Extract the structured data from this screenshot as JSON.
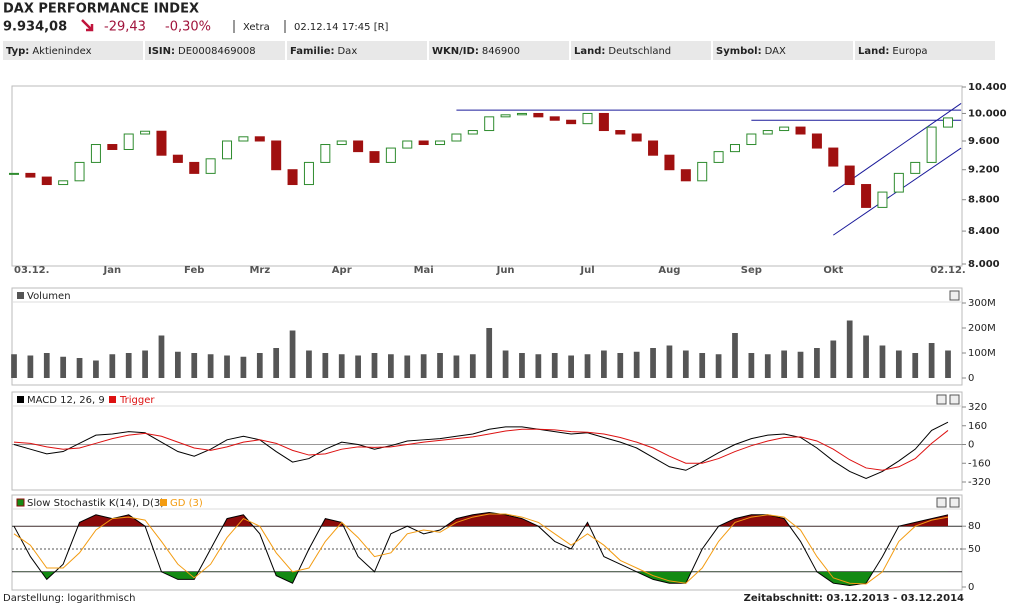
{
  "header": {
    "title": "DAX PERFORMANCE INDEX",
    "price": "9.934,08",
    "change": "-29,43",
    "change_pct": "-0,30%",
    "exchange": "Xetra",
    "timestamp": "02.12.14 17:45 [R]"
  },
  "info": [
    {
      "label": "Typ:",
      "value": "Aktienindex"
    },
    {
      "label": "ISIN:",
      "value": "DE0008469008"
    },
    {
      "label": "Familie:",
      "value": "Dax"
    },
    {
      "label": "WKN/ID:",
      "value": "846900"
    },
    {
      "label": "Land:",
      "value": "Deutschland"
    },
    {
      "label": "Symbol:",
      "value": "DAX"
    },
    {
      "label": "Land:",
      "value": "Europa"
    }
  ],
  "footer": {
    "left": "Darstellung: logarithmisch",
    "right": "Zeitabschnitt: 03.12.2013 - 03.12.2014"
  },
  "chart_data": [
    {
      "type": "candlestick",
      "log": true,
      "up_color": "#2e8b2e",
      "down_color": "#a01010",
      "categories": [
        "03.12.",
        null,
        null,
        null,
        null,
        null,
        "Jan",
        null,
        null,
        null,
        null,
        "Feb",
        null,
        null,
        null,
        "Mrz",
        null,
        null,
        null,
        null,
        "Apr",
        null,
        null,
        null,
        null,
        "Mai",
        null,
        null,
        null,
        null,
        "Jun",
        null,
        null,
        null,
        null,
        "Jul",
        null,
        null,
        null,
        null,
        "Aug",
        null,
        null,
        null,
        null,
        "Sep",
        null,
        null,
        null,
        null,
        "Okt",
        null,
        null,
        null,
        null,
        null,
        null,
        "02.12."
      ],
      "values": [
        9150,
        9100,
        9000,
        9050,
        9300,
        9550,
        9480,
        9700,
        9740,
        9400,
        9300,
        9150,
        9350,
        9600,
        9660,
        9600,
        9200,
        9000,
        9300,
        9550,
        9600,
        9450,
        9300,
        9500,
        9600,
        9550,
        9600,
        9700,
        9750,
        9950,
        9980,
        10000,
        9950,
        9900,
        9850,
        10000,
        9750,
        9700,
        9600,
        9400,
        9200,
        9050,
        9300,
        9450,
        9550,
        9700,
        9750,
        9800,
        9700,
        9500,
        9250,
        9000,
        8700,
        8900,
        9150,
        9300,
        9800,
        9934.08
      ],
      "ylim": [
        8000,
        10400
      ],
      "yticks": [
        {
          "value": 10400,
          "label": "10.400"
        },
        {
          "value": 10000,
          "label": "10.000"
        },
        {
          "value": 9600,
          "label": "9.600"
        },
        {
          "value": 9200,
          "label": "9.200"
        },
        {
          "value": 8800,
          "label": "8.800"
        },
        {
          "value": 8400,
          "label": "8.400"
        },
        {
          "value": 8000,
          "label": "8.000"
        }
      ],
      "trend_lines": [
        {
          "start": [
            27,
            10050
          ],
          "end": [
            57.8,
            10050
          ]
        },
        {
          "start": [
            45,
            9900
          ],
          "end": [
            57.8,
            9900
          ]
        },
        {
          "start": [
            50,
            8350
          ],
          "end": [
            57.8,
            9500
          ]
        },
        {
          "start": [
            50,
            8900
          ],
          "end": [
            57.8,
            10150
          ]
        }
      ],
      "trend_color": "#1a1a9a"
    },
    {
      "type": "bar",
      "title": "Volumen",
      "color": "#555555",
      "values": [
        95000000,
        90000000,
        100000000,
        85000000,
        80000000,
        70000000,
        95000000,
        100000000,
        110000000,
        170000000,
        105000000,
        100000000,
        95000000,
        90000000,
        85000000,
        100000000,
        120000000,
        190000000,
        110000000,
        100000000,
        95000000,
        90000000,
        100000000,
        95000000,
        90000000,
        95000000,
        100000000,
        90000000,
        95000000,
        200000000,
        110000000,
        100000000,
        95000000,
        100000000,
        90000000,
        95000000,
        110000000,
        100000000,
        105000000,
        120000000,
        130000000,
        110000000,
        100000000,
        95000000,
        180000000,
        100000000,
        95000000,
        110000000,
        105000000,
        120000000,
        150000000,
        230000000,
        170000000,
        130000000,
        110000000,
        100000000,
        140000000,
        110000000
      ],
      "ylim": [
        0,
        300000000
      ],
      "yticks": [
        {
          "value": 300000000,
          "label": "300M"
        },
        {
          "value": 200000000,
          "label": "200M"
        },
        {
          "value": 100000000,
          "label": "100M"
        },
        0
      ]
    },
    {
      "type": "line",
      "ylim": [
        -320,
        320
      ],
      "yticks": [
        320,
        160,
        0,
        -160,
        -320
      ],
      "series": [
        {
          "name": "MACD 12, 26, 9",
          "color": "#000000",
          "values": [
            0,
            -40,
            -80,
            -60,
            10,
            80,
            90,
            110,
            100,
            20,
            -60,
            -100,
            -40,
            40,
            70,
            40,
            -60,
            -150,
            -120,
            -40,
            20,
            0,
            -40,
            -10,
            30,
            40,
            50,
            70,
            90,
            130,
            150,
            150,
            130,
            110,
            90,
            100,
            60,
            20,
            -30,
            -110,
            -190,
            -220,
            -150,
            -70,
            0,
            50,
            80,
            90,
            60,
            -30,
            -140,
            -230,
            -290,
            -230,
            -140,
            -40,
            120,
            190
          ]
        },
        {
          "name": "Trigger",
          "color": "#dd1111",
          "values": [
            20,
            10,
            -20,
            -40,
            -30,
            10,
            50,
            80,
            95,
            70,
            20,
            -30,
            -50,
            -20,
            20,
            40,
            10,
            -50,
            -90,
            -80,
            -40,
            -20,
            -25,
            -20,
            0,
            20,
            35,
            50,
            65,
            90,
            115,
            130,
            130,
            125,
            110,
            105,
            90,
            60,
            20,
            -30,
            -100,
            -160,
            -160,
            -120,
            -60,
            -10,
            30,
            60,
            65,
            30,
            -40,
            -130,
            -200,
            -220,
            -190,
            -120,
            10,
            120
          ]
        }
      ]
    },
    {
      "type": "line",
      "ylim": [
        0,
        100
      ],
      "yticks": [
        80,
        50,
        0
      ],
      "levels": [
        20,
        80
      ],
      "high_fill": "#8b0a0a",
      "low_fill": "#138a13",
      "series": [
        {
          "name": "Slow Stochastik K(14), D(3)",
          "color": "#000000",
          "values": [
            80,
            40,
            10,
            30,
            85,
            95,
            90,
            95,
            80,
            20,
            10,
            10,
            50,
            90,
            95,
            70,
            15,
            5,
            50,
            90,
            85,
            40,
            20,
            70,
            80,
            70,
            75,
            90,
            95,
            98,
            95,
            90,
            80,
            60,
            50,
            85,
            40,
            30,
            20,
            10,
            5,
            5,
            50,
            80,
            90,
            95,
            95,
            90,
            60,
            20,
            5,
            2,
            5,
            40,
            80,
            85,
            90,
            95
          ]
        },
        {
          "name": "GD (3)",
          "color": "#f39c12",
          "values": [
            70,
            55,
            25,
            25,
            45,
            75,
            90,
            92,
            88,
            60,
            30,
            12,
            30,
            65,
            90,
            80,
            45,
            20,
            25,
            60,
            85,
            65,
            40,
            45,
            70,
            75,
            72,
            85,
            92,
            96,
            96,
            92,
            85,
            70,
            55,
            70,
            55,
            35,
            25,
            15,
            8,
            5,
            25,
            60,
            85,
            92,
            95,
            92,
            75,
            40,
            12,
            5,
            4,
            20,
            60,
            80,
            88,
            92
          ]
        }
      ]
    }
  ]
}
